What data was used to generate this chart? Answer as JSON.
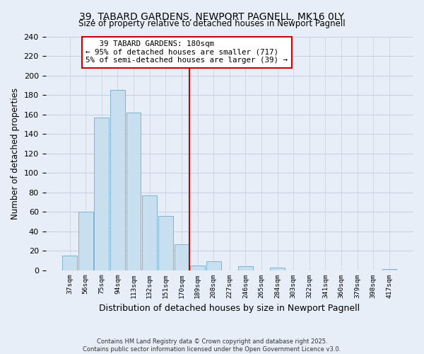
{
  "title": "39, TABARD GARDENS, NEWPORT PAGNELL, MK16 0LY",
  "subtitle": "Size of property relative to detached houses in Newport Pagnell",
  "xlabel": "Distribution of detached houses by size in Newport Pagnell",
  "ylabel": "Number of detached properties",
  "bar_labels": [
    "37sqm",
    "56sqm",
    "75sqm",
    "94sqm",
    "113sqm",
    "132sqm",
    "151sqm",
    "170sqm",
    "189sqm",
    "208sqm",
    "227sqm",
    "246sqm",
    "265sqm",
    "284sqm",
    "303sqm",
    "322sqm",
    "341sqm",
    "360sqm",
    "379sqm",
    "398sqm",
    "417sqm"
  ],
  "bar_values": [
    15,
    60,
    157,
    185,
    162,
    77,
    56,
    27,
    5,
    9,
    0,
    4,
    0,
    3,
    0,
    0,
    0,
    0,
    0,
    0,
    1
  ],
  "bar_color": "#c8dff0",
  "bar_edge_color": "#7fb3d3",
  "vline_x": 7.5,
  "vline_color": "#cc0000",
  "annotation_line1": "   39 TABARD GARDENS: 180sqm",
  "annotation_line2": "← 95% of detached houses are smaller (717)",
  "annotation_line3": "5% of semi-detached houses are larger (39) →",
  "annotation_box_color": "#ffffff",
  "annotation_box_edge": "#cc0000",
  "ylim": [
    0,
    240
  ],
  "yticks": [
    0,
    20,
    40,
    60,
    80,
    100,
    120,
    140,
    160,
    180,
    200,
    220,
    240
  ],
  "footer_line1": "Contains HM Land Registry data © Crown copyright and database right 2025.",
  "footer_line2": "Contains public sector information licensed under the Open Government Licence v3.0.",
  "bg_color": "#e8eef8",
  "grid_color": "#c5cfe0"
}
